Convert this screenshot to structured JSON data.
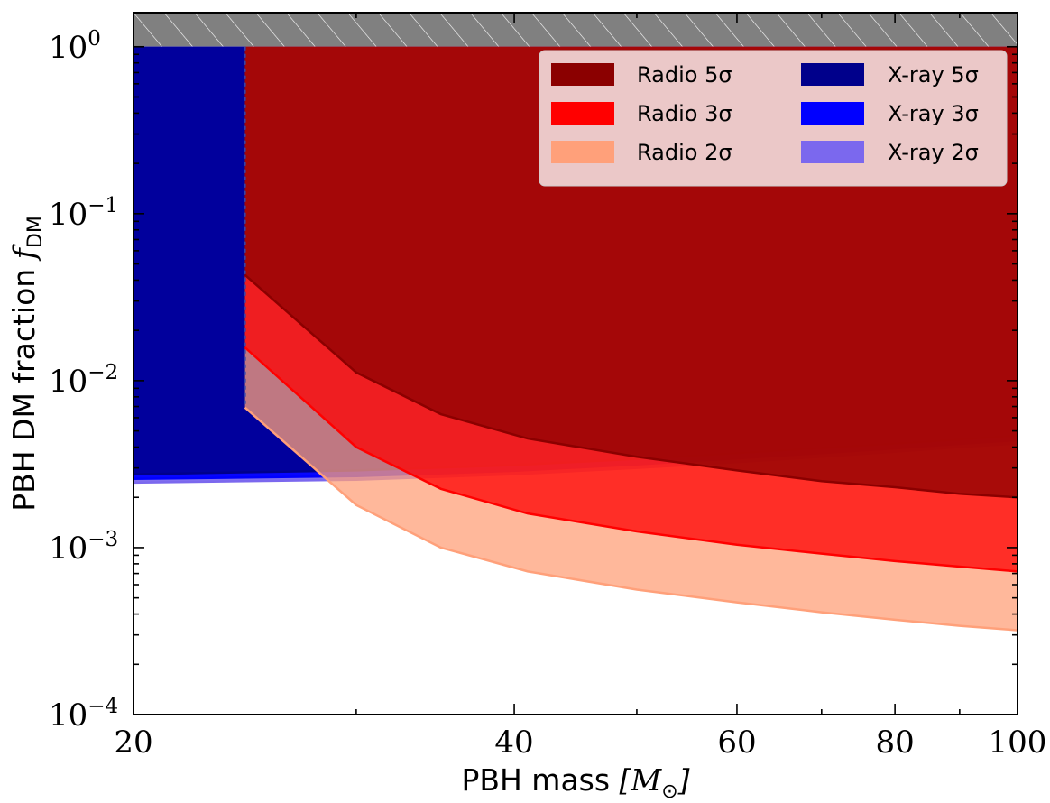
{
  "chart_data": {
    "type": "area",
    "xlabel": "PBH mass [M☉]",
    "ylabel": "PBH DM fraction f_DM",
    "xlabel_parts": {
      "text": "PBH mass ",
      "math": "[M",
      "sub": "⊙",
      "close": "]"
    },
    "ylabel_parts": {
      "text": "PBH DM fraction ",
      "math": "f",
      "sub": "DM"
    },
    "x_scale": "log",
    "y_scale": "log",
    "xlim": [
      20,
      100
    ],
    "ylim": [
      0.0001,
      1.6
    ],
    "x_ticks": [
      {
        "value": 20,
        "label": "20"
      },
      {
        "value": 40,
        "label": "40"
      },
      {
        "value": 60,
        "label": "60"
      },
      {
        "value": 80,
        "label": "80"
      },
      {
        "value": 100,
        "label": "100"
      }
    ],
    "y_ticks": [
      {
        "value": 0.0001,
        "base": "10",
        "exp": "−4"
      },
      {
        "value": 0.001,
        "base": "10",
        "exp": "−3"
      },
      {
        "value": 0.01,
        "base": "10",
        "exp": "−2"
      },
      {
        "value": 0.1,
        "base": "10",
        "exp": "−1"
      },
      {
        "value": 1,
        "base": "10",
        "exp": "0"
      }
    ],
    "excluded_region": {
      "y_from": 1.0,
      "y_to": 1.6,
      "color": "#808080",
      "hatch": true
    },
    "series": [
      {
        "name": "X-ray 2σ",
        "color": "#7B68EE",
        "alpha": 0.95,
        "x": [
          20,
          30,
          40,
          50,
          60,
          70,
          80,
          90,
          100
        ],
        "lower": [
          0.00245,
          0.00255,
          0.00275,
          0.003,
          0.00325,
          0.0035,
          0.00375,
          0.004,
          0.0042
        ]
      },
      {
        "name": "X-ray 3σ",
        "color": "#0000FF",
        "alpha": 0.95,
        "x": [
          20,
          30,
          40,
          50,
          60,
          70,
          80,
          90,
          100
        ],
        "lower": [
          0.00258,
          0.00268,
          0.00288,
          0.00315,
          0.00342,
          0.00368,
          0.00393,
          0.00418,
          0.0044
        ]
      },
      {
        "name": "X-ray 5σ",
        "color": "#00008B",
        "alpha": 0.85,
        "x": [
          20,
          30,
          40,
          50,
          60,
          70,
          80,
          90,
          100
        ],
        "lower": [
          0.00275,
          0.0029,
          0.00312,
          0.0034,
          0.00368,
          0.00396,
          0.0042,
          0.00445,
          0.0047
        ]
      },
      {
        "name": "Radio 2σ",
        "color": "#FFA07A",
        "alpha": 0.75,
        "x": [
          24.5,
          30,
          35,
          41,
          50,
          60,
          70,
          80,
          90,
          100
        ],
        "lower": [
          0.0069,
          0.0018,
          0.001,
          0.00072,
          0.00056,
          0.00047,
          0.00041,
          0.00037,
          0.00034,
          0.00032
        ]
      },
      {
        "name": "Radio 3σ",
        "color": "#FF0000",
        "alpha": 0.75,
        "x": [
          24.5,
          30,
          35,
          41,
          50,
          60,
          70,
          80,
          90,
          100
        ],
        "lower": [
          0.0158,
          0.004,
          0.00225,
          0.0016,
          0.00125,
          0.00104,
          0.00092,
          0.00083,
          0.00077,
          0.00072
        ]
      },
      {
        "name": "Radio 5σ",
        "color": "#8B0000",
        "alpha": 0.75,
        "x": [
          24.5,
          30,
          35,
          41,
          50,
          60,
          70,
          80,
          90,
          100
        ],
        "lower": [
          0.043,
          0.0112,
          0.0063,
          0.0045,
          0.0035,
          0.0029,
          0.0025,
          0.0023,
          0.0021,
          0.002
        ]
      }
    ],
    "legend": {
      "position": "top-right",
      "columns": 2,
      "entries": [
        {
          "label": "Radio 5σ",
          "color": "#8B0000"
        },
        {
          "label": "X-ray 5σ",
          "color": "#00008B"
        },
        {
          "label": "Radio 3σ",
          "color": "#FF0000"
        },
        {
          "label": "X-ray 3σ",
          "color": "#0000FF"
        },
        {
          "label": "Radio 2σ",
          "color": "#FFA07A"
        },
        {
          "label": "X-ray 2σ",
          "color": "#7B68EE"
        }
      ]
    },
    "grid": false
  }
}
